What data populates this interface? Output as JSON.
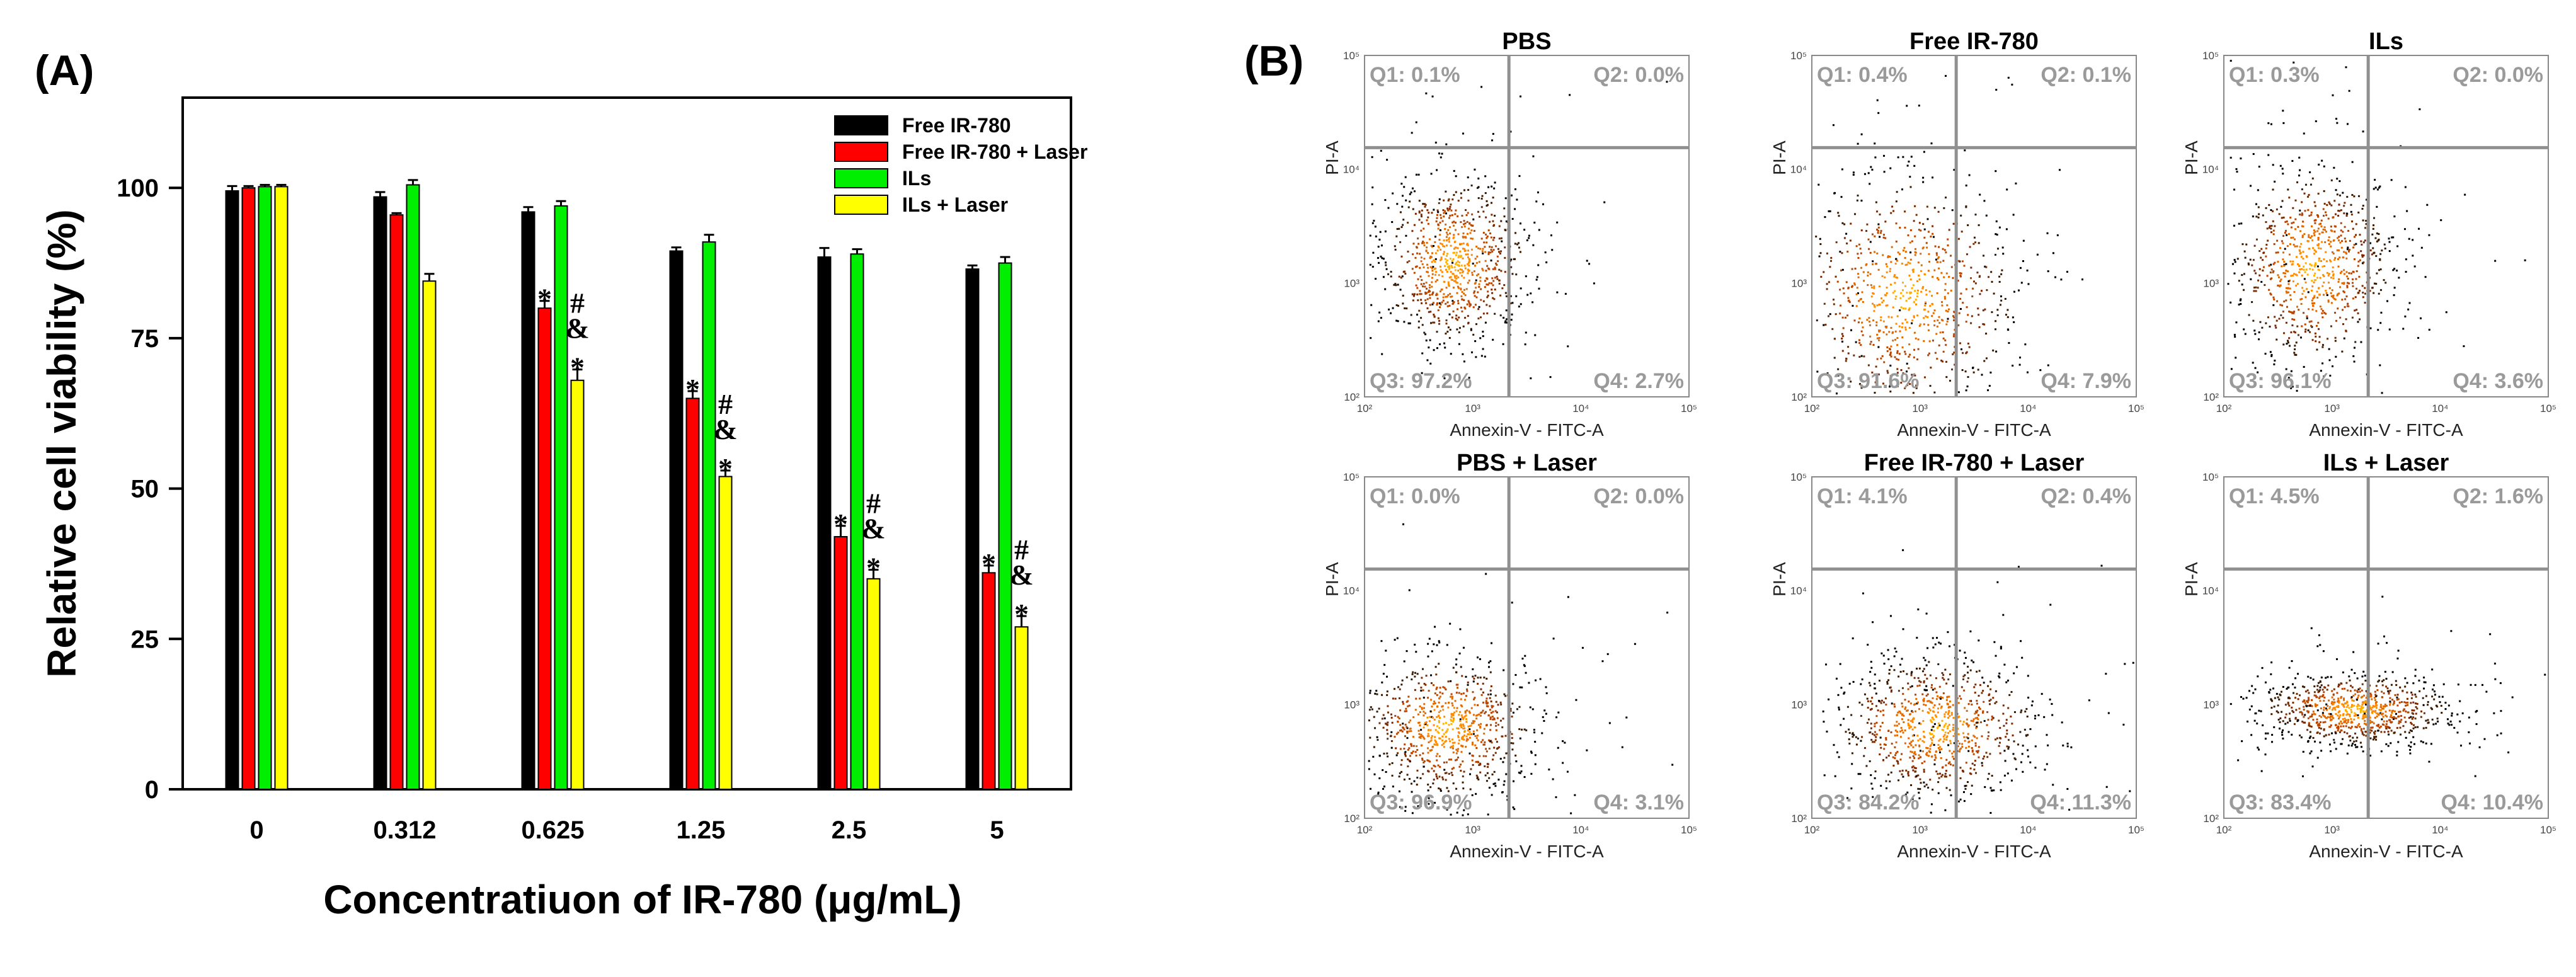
{
  "chart_data": [
    {
      "panel": "(A)",
      "type": "bar",
      "title": "",
      "xlabel": "Concentratiuon of IR-780 (μg/mL)",
      "ylabel": "Relative cell viability (%)",
      "ylim": [
        0,
        115
      ],
      "yticks": [
        0,
        25,
        50,
        75,
        100
      ],
      "categories": [
        "0",
        "0.312",
        "0.625",
        "1.25",
        "2.5",
        "5"
      ],
      "legend": "top-right",
      "series": [
        {
          "name": "Free IR-780",
          "color": "#000000",
          "values": [
            99.5,
            98.5,
            96,
            89.5,
            88.5,
            86.5
          ],
          "errors": [
            0.8,
            0.8,
            0.8,
            0.6,
            1.5,
            0.6
          ]
        },
        {
          "name": "Free IR-780 + Laser",
          "color": "#ff0000",
          "values": [
            100,
            95.5,
            80,
            65,
            42,
            36
          ],
          "errors": [
            0.3,
            0.3,
            1.2,
            1.2,
            1.8,
            1.2
          ]
        },
        {
          "name": "ILs",
          "color": "#00ee00",
          "values": [
            100.2,
            100.5,
            97,
            91,
            89,
            87.5
          ],
          "errors": [
            0.3,
            0.8,
            0.8,
            1.2,
            0.8,
            1.0
          ]
        },
        {
          "name": "ILs + Laser",
          "color": "#ffff00",
          "values": [
            100.2,
            84.5,
            68,
            52,
            35,
            27
          ],
          "errors": [
            0.3,
            1.2,
            1.8,
            1.0,
            1.5,
            1.8
          ]
        }
      ],
      "annotations": [
        {
          "category": "0.625",
          "series": "Free IR-780 + Laser",
          "marks": [
            "*"
          ]
        },
        {
          "category": "0.625",
          "series": "ILs + Laser",
          "marks": [
            "#",
            "&",
            "*"
          ]
        },
        {
          "category": "1.25",
          "series": "Free IR-780 + Laser",
          "marks": [
            "*"
          ]
        },
        {
          "category": "1.25",
          "series": "ILs + Laser",
          "marks": [
            "#",
            "&",
            "*"
          ]
        },
        {
          "category": "2.5",
          "series": "Free IR-780 + Laser",
          "marks": [
            "*"
          ]
        },
        {
          "category": "2.5",
          "series": "ILs + Laser",
          "marks": [
            "#",
            "&",
            "*"
          ]
        },
        {
          "category": "5",
          "series": "Free IR-780 + Laser",
          "marks": [
            "*"
          ]
        },
        {
          "category": "5",
          "series": "ILs + Laser",
          "marks": [
            "#",
            "&",
            "*"
          ]
        }
      ]
    },
    {
      "panel": "(B)",
      "type": "scatter",
      "description_type": "flow cytometry quadrant plots",
      "xlabel": "Annexin-V - FITC-A",
      "ylabel": "PI-A",
      "axis_ticks": [
        "10²",
        "10³",
        "10⁴",
        "10⁵"
      ],
      "plots": [
        {
          "title": "PBS",
          "q1": "Q1: 0.1%",
          "q2": "Q2: 0.0%",
          "q3": "Q3: 97.2%",
          "q4": "Q4: 2.7%"
        },
        {
          "title": "Free IR-780",
          "q1": "Q1: 0.4%",
          "q2": "Q2: 0.1%",
          "q3": "Q3: 91.6%",
          "q4": "Q4: 7.9%"
        },
        {
          "title": "ILs",
          "q1": "Q1: 0.3%",
          "q2": "Q2: 0.0%",
          "q3": "Q3: 96.1%",
          "q4": "Q4: 3.6%"
        },
        {
          "title": "PBS + Laser",
          "q1": "Q1: 0.0%",
          "q2": "Q2: 0.0%",
          "q3": "Q3: 96.9%",
          "q4": "Q4: 3.1%"
        },
        {
          "title": "Free IR-780 + Laser",
          "q1": "Q1: 4.1%",
          "q2": "Q2: 0.4%",
          "q3": "Q3: 84.2%",
          "q4": "Q4: 11.3%"
        },
        {
          "title": "ILs + Laser",
          "q1": "Q1: 4.5%",
          "q2": "Q2: 1.6%",
          "q3": "Q3: 83.4%",
          "q4": "Q4: 10.4%"
        }
      ]
    }
  ]
}
